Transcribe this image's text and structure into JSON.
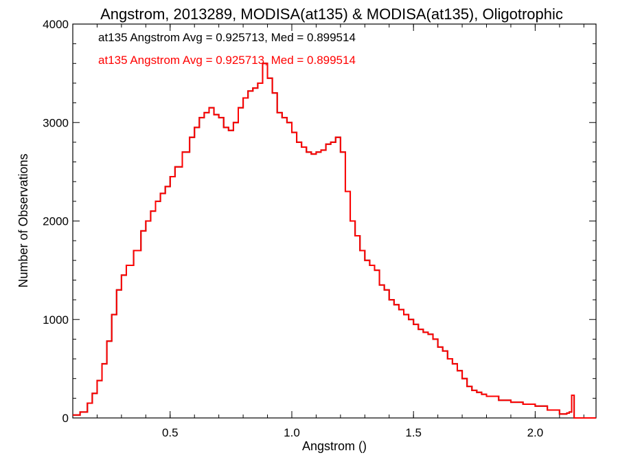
{
  "chart_data": {
    "type": "line",
    "title": "Angstrom, 2013289, MODISA(at135) & MODISA(at135), Oligotrophic",
    "xlabel": "Angstrom ()",
    "ylabel": "Number of Observations",
    "xlim": [
      0.1,
      2.25
    ],
    "ylim": [
      0,
      4000
    ],
    "xticks": [
      "0.5",
      "1.0",
      "1.5",
      "2.0"
    ],
    "yticks": [
      "0",
      "1000",
      "2000",
      "3000",
      "4000"
    ],
    "grid": false,
    "legend": "top-left",
    "annotations": [
      {
        "text": "at135 Angstrom Avg = 0.925713, Med = 0.899514",
        "color": "#000000"
      },
      {
        "text": "at135 Angstrom Avg = 0.925713, Med = 0.899514",
        "color": "#ff0000"
      }
    ],
    "series": [
      {
        "color": "#000000",
        "x": [
          0.1,
          0.13,
          0.16,
          0.18,
          0.2,
          0.22,
          0.24,
          0.26,
          0.28,
          0.3,
          0.32,
          0.35,
          0.38,
          0.4,
          0.42,
          0.44,
          0.46,
          0.48,
          0.5,
          0.52,
          0.55,
          0.58,
          0.6,
          0.62,
          0.64,
          0.66,
          0.68,
          0.7,
          0.72,
          0.74,
          0.76,
          0.78,
          0.8,
          0.82,
          0.84,
          0.86,
          0.88,
          0.9,
          0.92,
          0.94,
          0.96,
          0.98,
          1.0,
          1.02,
          1.04,
          1.06,
          1.08,
          1.1,
          1.12,
          1.14,
          1.16,
          1.18,
          1.2,
          1.22,
          1.24,
          1.26,
          1.28,
          1.3,
          1.32,
          1.34,
          1.36,
          1.38,
          1.4,
          1.42,
          1.44,
          1.46,
          1.48,
          1.5,
          1.52,
          1.54,
          1.56,
          1.58,
          1.6,
          1.62,
          1.64,
          1.66,
          1.68,
          1.7,
          1.72,
          1.74,
          1.76,
          1.78,
          1.8,
          1.85,
          1.9,
          1.95,
          2.0,
          2.05,
          2.1,
          2.13,
          2.14,
          2.15,
          2.16,
          2.25
        ],
        "y": [
          30,
          60,
          150,
          250,
          380,
          550,
          780,
          1050,
          1300,
          1450,
          1550,
          1700,
          1900,
          2000,
          2100,
          2200,
          2280,
          2350,
          2450,
          2550,
          2700,
          2850,
          2950,
          3050,
          3100,
          3150,
          3080,
          3050,
          2950,
          2920,
          3000,
          3150,
          3250,
          3320,
          3350,
          3400,
          3600,
          3450,
          3300,
          3100,
          3050,
          3000,
          2900,
          2800,
          2750,
          2700,
          2680,
          2700,
          2720,
          2780,
          2800,
          2850,
          2700,
          2300,
          2000,
          1850,
          1700,
          1600,
          1550,
          1500,
          1350,
          1300,
          1200,
          1150,
          1100,
          1050,
          1000,
          950,
          900,
          870,
          850,
          800,
          720,
          680,
          600,
          550,
          480,
          400,
          320,
          280,
          260,
          240,
          220,
          180,
          160,
          140,
          120,
          80,
          40,
          50,
          60,
          230,
          0,
          0
        ]
      },
      {
        "color": "#ff0000",
        "x": [
          0.1,
          0.13,
          0.16,
          0.18,
          0.2,
          0.22,
          0.24,
          0.26,
          0.28,
          0.3,
          0.32,
          0.35,
          0.38,
          0.4,
          0.42,
          0.44,
          0.46,
          0.48,
          0.5,
          0.52,
          0.55,
          0.58,
          0.6,
          0.62,
          0.64,
          0.66,
          0.68,
          0.7,
          0.72,
          0.74,
          0.76,
          0.78,
          0.8,
          0.82,
          0.84,
          0.86,
          0.88,
          0.9,
          0.92,
          0.94,
          0.96,
          0.98,
          1.0,
          1.02,
          1.04,
          1.06,
          1.08,
          1.1,
          1.12,
          1.14,
          1.16,
          1.18,
          1.2,
          1.22,
          1.24,
          1.26,
          1.28,
          1.3,
          1.32,
          1.34,
          1.36,
          1.38,
          1.4,
          1.42,
          1.44,
          1.46,
          1.48,
          1.5,
          1.52,
          1.54,
          1.56,
          1.58,
          1.6,
          1.62,
          1.64,
          1.66,
          1.68,
          1.7,
          1.72,
          1.74,
          1.76,
          1.78,
          1.8,
          1.85,
          1.9,
          1.95,
          2.0,
          2.05,
          2.1,
          2.13,
          2.14,
          2.15,
          2.16,
          2.25
        ],
        "y": [
          30,
          60,
          150,
          250,
          380,
          550,
          780,
          1050,
          1300,
          1450,
          1550,
          1700,
          1900,
          2000,
          2100,
          2200,
          2280,
          2350,
          2450,
          2550,
          2700,
          2850,
          2950,
          3050,
          3100,
          3150,
          3080,
          3050,
          2950,
          2920,
          3000,
          3150,
          3250,
          3320,
          3350,
          3400,
          3600,
          3450,
          3300,
          3100,
          3050,
          3000,
          2900,
          2800,
          2750,
          2700,
          2680,
          2700,
          2720,
          2780,
          2800,
          2850,
          2700,
          2300,
          2000,
          1850,
          1700,
          1600,
          1550,
          1500,
          1350,
          1300,
          1200,
          1150,
          1100,
          1050,
          1000,
          950,
          900,
          870,
          850,
          800,
          720,
          680,
          600,
          550,
          480,
          400,
          320,
          280,
          260,
          240,
          220,
          180,
          160,
          140,
          120,
          80,
          40,
          50,
          60,
          230,
          0,
          0
        ]
      }
    ]
  }
}
